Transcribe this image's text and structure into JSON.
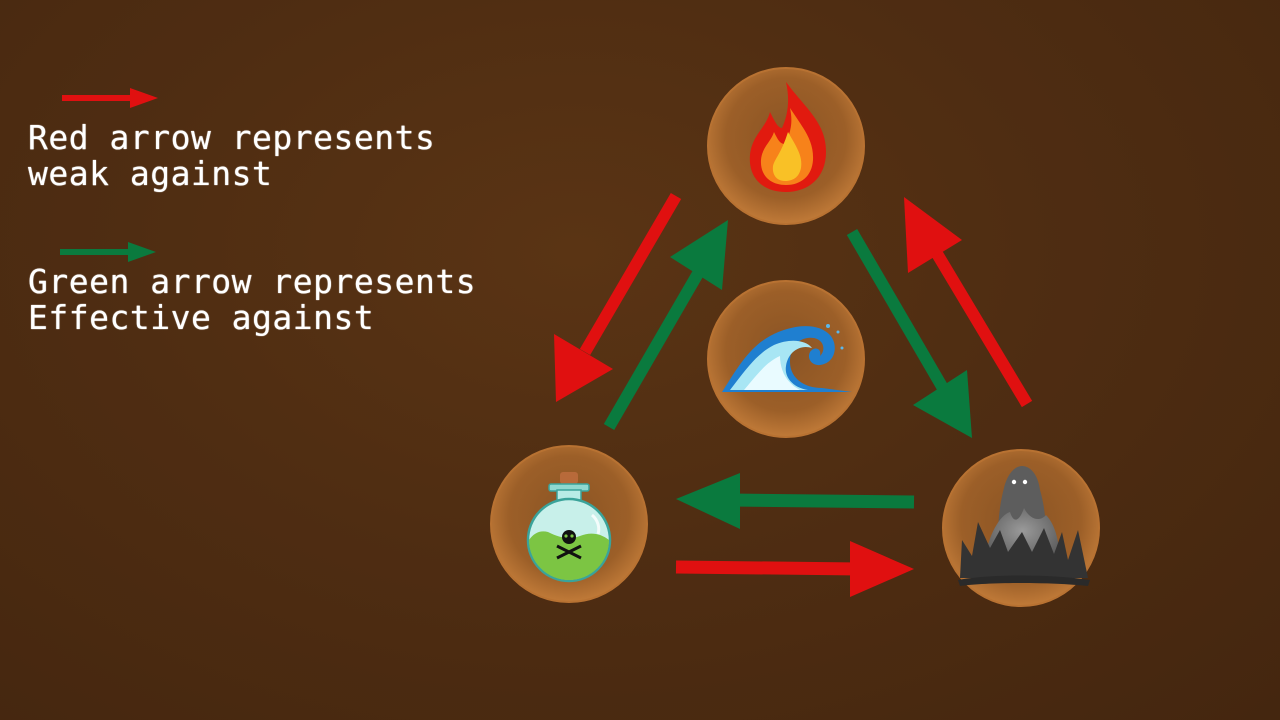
{
  "legend": {
    "red": {
      "line1": "Red arrow represents",
      "line2": "weak against",
      "color": "#e01010"
    },
    "green": {
      "line1": "Green arrow represents",
      "line2": "Effective against",
      "color": "#0a7a3e"
    }
  },
  "elements": [
    {
      "name": "fire",
      "icon": "fire-icon"
    },
    {
      "name": "water",
      "icon": "wave-icon"
    },
    {
      "name": "poison",
      "icon": "poison-flask-icon"
    },
    {
      "name": "ghost",
      "icon": "ghost-icon"
    }
  ],
  "colors": {
    "background": "#4f2d12",
    "orb": "#a8682a",
    "red_arrow": "#e01010",
    "green_arrow": "#0a7a3e"
  }
}
